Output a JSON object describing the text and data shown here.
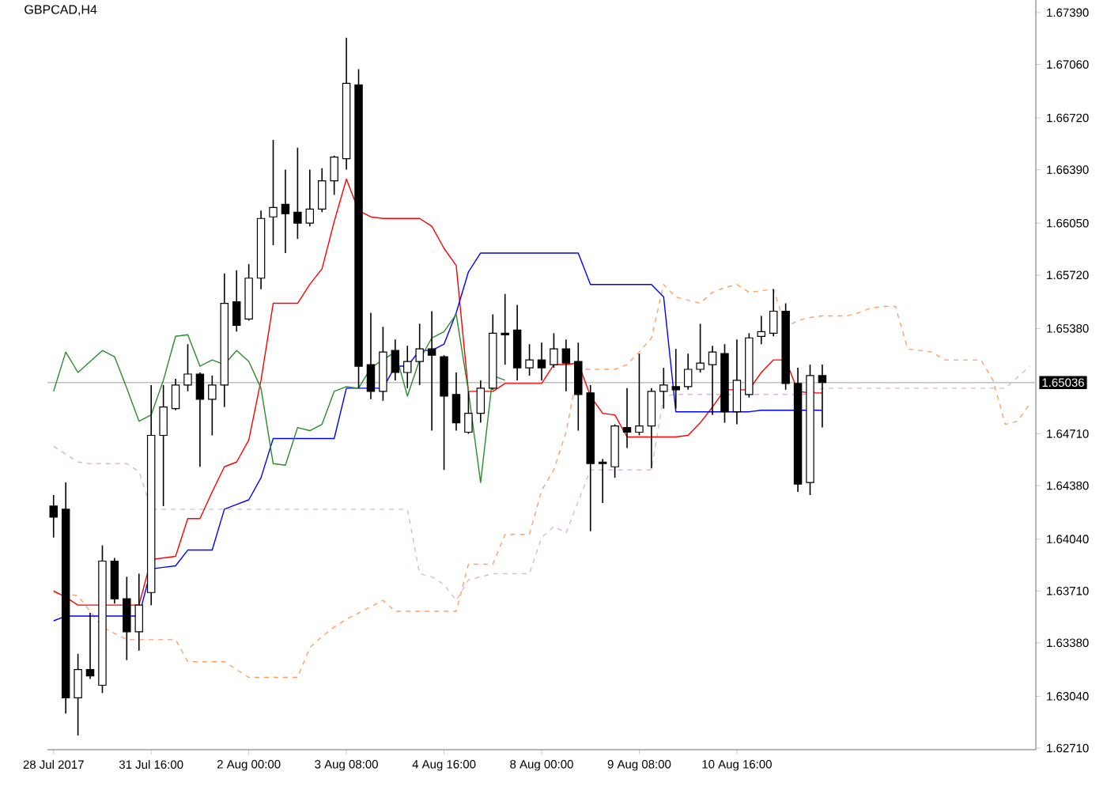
{
  "chart_data": {
    "type": "candlestick",
    "title": "GBPCAD,H4",
    "categories": [
      "28 Jul 2017",
      null,
      null,
      null,
      null,
      null,
      null,
      null,
      "31 Jul 16:00",
      null,
      null,
      null,
      null,
      null,
      null,
      null,
      "2 Aug 00:00",
      null,
      null,
      null,
      null,
      null,
      null,
      null,
      "3 Aug 08:00",
      null,
      null,
      null,
      null,
      null,
      null,
      null,
      "4 Aug 16:00",
      null,
      null,
      null,
      null,
      null,
      null,
      null,
      "8 Aug 00:00",
      null,
      null,
      null,
      null,
      null,
      null,
      null,
      "9 Aug 08:00",
      null,
      null,
      null,
      null,
      null,
      null,
      null,
      "10 Aug 16:00",
      null,
      null,
      null,
      null,
      null,
      null,
      null,
      null,
      null,
      null,
      null,
      null,
      null,
      null,
      null,
      null,
      null,
      null,
      null,
      null,
      null,
      null,
      null,
      null
    ],
    "ohlc": [
      [
        1.6425,
        1.6432,
        1.6405,
        1.6418
      ],
      [
        1.6423,
        1.644,
        1.6293,
        1.6303
      ],
      [
        1.6303,
        1.6331,
        1.6279,
        1.6321
      ],
      [
        1.6321,
        1.6357,
        1.6315,
        1.6317
      ],
      [
        1.6311,
        1.64,
        1.6306,
        1.639
      ],
      [
        1.639,
        1.6392,
        1.6363,
        1.6366
      ],
      [
        1.6366,
        1.638,
        1.6327,
        1.6345
      ],
      [
        1.6345,
        1.6382,
        1.6333,
        1.6362
      ],
      [
        1.637,
        1.6502,
        1.6362,
        1.647
      ],
      [
        1.647,
        1.6502,
        1.6425,
        1.6488
      ],
      [
        1.6487,
        1.6506,
        1.6486,
        1.6502
      ],
      [
        1.6502,
        1.6528,
        1.6498,
        1.6509
      ],
      [
        1.6509,
        1.651,
        1.645,
        1.6493
      ],
      [
        1.6493,
        1.6508,
        1.647,
        1.6502
      ],
      [
        1.6502,
        1.6573,
        1.6488,
        1.6554
      ],
      [
        1.6555,
        1.6575,
        1.6536,
        1.654
      ],
      [
        1.6544,
        1.6579,
        1.6543,
        1.657
      ],
      [
        1.657,
        1.6613,
        1.6563,
        1.6608
      ],
      [
        1.6609,
        1.6658,
        1.6591,
        1.6615
      ],
      [
        1.6617,
        1.6639,
        1.6586,
        1.6611
      ],
      [
        1.6612,
        1.6653,
        1.6595,
        1.6605
      ],
      [
        1.6605,
        1.6639,
        1.6603,
        1.6614
      ],
      [
        1.6614,
        1.664,
        1.6612,
        1.6632
      ],
      [
        1.6632,
        1.6648,
        1.6623,
        1.6647
      ],
      [
        1.6646,
        1.6723,
        1.6639,
        1.6694
      ],
      [
        1.6693,
        1.6703,
        1.65,
        1.6514
      ],
      [
        1.6515,
        1.6548,
        1.6493,
        1.6498
      ],
      [
        1.6498,
        1.6539,
        1.6492,
        1.6523
      ],
      [
        1.6524,
        1.6531,
        1.6505,
        1.651
      ],
      [
        1.651,
        1.6527,
        1.65,
        1.6517
      ],
      [
        1.6517,
        1.6541,
        1.6502,
        1.6525
      ],
      [
        1.6525,
        1.6549,
        1.6473,
        1.6521
      ],
      [
        1.652,
        1.6521,
        1.6448,
        1.6495
      ],
      [
        1.6496,
        1.651,
        1.6473,
        1.6478
      ],
      [
        1.6472,
        1.6498,
        1.6471,
        1.6484
      ],
      [
        1.6484,
        1.6505,
        1.6478,
        1.65
      ],
      [
        1.65,
        1.6547,
        1.6499,
        1.6535
      ],
      [
        1.6535,
        1.656,
        1.6515,
        1.6534
      ],
      [
        1.6537,
        1.6553,
        1.6505,
        1.6513
      ],
      [
        1.6513,
        1.6528,
        1.6508,
        1.6518
      ],
      [
        1.6518,
        1.6529,
        1.6505,
        1.6513
      ],
      [
        1.6515,
        1.6535,
        1.6513,
        1.6525
      ],
      [
        1.6525,
        1.6531,
        1.6498,
        1.6516
      ],
      [
        1.6517,
        1.6529,
        1.6473,
        1.6496
      ],
      [
        1.6497,
        1.6502,
        1.6409,
        1.6452
      ],
      [
        1.6453,
        1.6455,
        1.6427,
        1.6452
      ],
      [
        1.645,
        1.6477,
        1.6443,
        1.6476
      ],
      [
        1.6475,
        1.65,
        1.6462,
        1.6472
      ],
      [
        1.6472,
        1.6522,
        1.647,
        1.6476
      ],
      [
        1.6476,
        1.65,
        1.6449,
        1.6498
      ],
      [
        1.6498,
        1.6513,
        1.6487,
        1.6502
      ],
      [
        1.6501,
        1.6525,
        1.6487,
        1.6499
      ],
      [
        1.6501,
        1.6522,
        1.6499,
        1.6512
      ],
      [
        1.6512,
        1.6541,
        1.651,
        1.6516
      ],
      [
        1.6515,
        1.6527,
        1.6483,
        1.6523
      ],
      [
        1.6522,
        1.6528,
        1.6478,
        1.6485
      ],
      [
        1.6485,
        1.6531,
        1.6477,
        1.6505
      ],
      [
        1.6496,
        1.6535,
        1.6494,
        1.6532
      ],
      [
        1.6533,
        1.6546,
        1.6528,
        1.6536
      ],
      [
        1.6535,
        1.6563,
        1.6533,
        1.6549
      ],
      [
        1.6549,
        1.6554,
        1.6499,
        1.6503
      ],
      [
        1.6503,
        1.6513,
        1.6434,
        1.6439
      ],
      [
        1.644,
        1.6515,
        1.6432,
        1.6508
      ],
      [
        1.6508,
        1.6515,
        1.6475,
        1.65036
      ],
      null,
      null,
      null,
      null,
      null,
      null,
      null,
      null,
      null,
      null,
      null,
      null,
      null,
      null,
      null,
      null,
      null
    ],
    "series": [
      {
        "type": "line",
        "color": "#ffa060",
        "line_style": "dashed",
        "values": [
          1.637,
          1.6369,
          1.6368,
          1.6358,
          1.6348,
          1.6344,
          1.634,
          1.634,
          1.634,
          1.634,
          1.634,
          1.6326,
          1.6326,
          1.6326,
          1.6326,
          1.6321,
          1.6316,
          1.6316,
          1.6316,
          1.6316,
          1.6316,
          1.6335,
          1.6342,
          1.6348,
          1.6353,
          1.6357,
          1.6361,
          1.6365,
          1.6358,
          1.6358,
          1.6358,
          1.6358,
          1.6358,
          1.6358,
          1.6388,
          1.6388,
          1.6388,
          1.6407,
          1.6407,
          1.6407,
          1.6435,
          1.6448,
          1.6472,
          1.6512,
          1.6512,
          1.6512,
          1.6512,
          1.6515,
          1.6523,
          1.6532,
          1.6566,
          1.6558,
          1.6556,
          1.6554,
          1.6561,
          1.6564,
          1.6566,
          1.6561,
          1.6562,
          1.6563,
          1.6539,
          1.6543,
          1.6545,
          1.6546,
          1.6546,
          1.6546,
          1.6548,
          1.6551,
          1.6552,
          1.6552,
          1.6525,
          1.6524,
          1.6523,
          1.6518,
          1.6518,
          1.6518,
          1.6518,
          1.6505,
          1.6477,
          1.6479,
          1.649
        ]
      },
      {
        "type": "line",
        "color": "#d8b8d8",
        "line_style": "dashed",
        "values": [
          1.6463,
          1.6458,
          1.6453,
          1.6452,
          1.6452,
          1.6452,
          1.6452,
          1.6447,
          1.6423,
          1.6423,
          1.6423,
          1.6423,
          1.6423,
          1.6423,
          1.6423,
          1.6423,
          1.6423,
          1.6423,
          1.6423,
          1.6423,
          1.6423,
          1.6423,
          1.6423,
          1.6423,
          1.6423,
          1.6423,
          1.6423,
          1.6423,
          1.6423,
          1.6423,
          1.6382,
          1.638,
          1.6375,
          1.6365,
          1.6378,
          1.638,
          1.6382,
          1.6382,
          1.6382,
          1.6382,
          1.6405,
          1.6412,
          1.6408,
          1.6428,
          1.6448,
          1.6448,
          1.6448,
          1.6448,
          1.6448,
          1.6448,
          1.6495,
          1.6496,
          1.6496,
          1.6496,
          1.6496,
          1.6496,
          1.6496,
          1.6496,
          1.6496,
          1.6496,
          1.6496,
          1.6496,
          1.6496,
          1.65,
          1.65,
          1.65,
          1.65,
          1.65,
          1.65,
          1.65,
          1.65,
          1.65,
          1.65,
          1.65,
          1.65,
          1.65,
          1.65,
          1.65,
          1.65,
          1.6507,
          1.6514
        ]
      },
      {
        "type": "line",
        "color": "#ff0000",
        "line_style": "solid",
        "values": [
          1.6371,
          1.6367,
          1.6362,
          1.6362,
          1.6362,
          1.6362,
          1.6362,
          1.6362,
          1.6391,
          1.6392,
          1.6393,
          1.6417,
          1.6417,
          1.6434,
          1.645,
          1.6453,
          1.6467,
          1.6505,
          1.6554,
          1.6554,
          1.6554,
          1.6566,
          1.6576,
          1.6606,
          1.6633,
          1.6613,
          1.6609,
          1.6608,
          1.6608,
          1.6608,
          1.6608,
          1.6603,
          1.6589,
          1.6578,
          1.6498,
          1.6498,
          1.6498,
          1.6503,
          1.6503,
          1.6503,
          1.6503,
          1.6515,
          1.6515,
          1.6516,
          1.6495,
          1.6484,
          1.6483,
          1.6469,
          1.6469,
          1.6469,
          1.6469,
          1.6469,
          1.647,
          1.6478,
          1.6488,
          1.6499,
          1.6499,
          1.6499,
          1.651,
          1.6518,
          1.6518,
          1.6498,
          1.6497,
          1.6497,
          null,
          null,
          null,
          null,
          null,
          null,
          null,
          null,
          null,
          null,
          null,
          null,
          null,
          null,
          null,
          null,
          null
        ]
      },
      {
        "type": "line",
        "color": "#0000ff",
        "line_style": "solid",
        "values": [
          1.6352,
          1.6355,
          1.6355,
          1.6355,
          1.6355,
          1.6355,
          1.6355,
          1.6355,
          1.6385,
          1.6386,
          1.6387,
          1.6397,
          1.6397,
          1.6397,
          1.6423,
          1.6426,
          1.6429,
          1.6443,
          1.6468,
          1.6468,
          1.6468,
          1.6468,
          1.6468,
          1.6468,
          1.65,
          1.65,
          1.65,
          1.65,
          1.6514,
          1.6514,
          1.6524,
          1.6524,
          1.6528,
          1.6548,
          1.6574,
          1.6586,
          1.6586,
          1.6586,
          1.6586,
          1.6586,
          1.6586,
          1.6586,
          1.6586,
          1.6586,
          1.6566,
          1.6566,
          1.6566,
          1.6566,
          1.6566,
          1.6566,
          1.6558,
          1.6485,
          1.6485,
          1.6485,
          1.6485,
          1.6485,
          1.6485,
          1.6485,
          1.6486,
          1.6486,
          1.6486,
          1.6486,
          1.6486,
          1.6486,
          null,
          null,
          null,
          null,
          null,
          null,
          null,
          null,
          null,
          null,
          null,
          null,
          null,
          null,
          null,
          null,
          null
        ]
      },
      {
        "type": "line",
        "color": "#2a8c2a",
        "line_style": "solid",
        "values": [
          1.6498,
          1.6523,
          1.651,
          1.6517,
          1.6524,
          1.652,
          1.65,
          1.6479,
          1.6483,
          1.6505,
          1.6533,
          1.6534,
          1.6514,
          1.6518,
          1.6515,
          1.6524,
          1.6517,
          1.65,
          1.6452,
          1.6451,
          1.6475,
          1.6473,
          1.6477,
          1.6498,
          1.6501,
          1.65,
          1.6513,
          1.6518,
          1.6523,
          1.6495,
          1.6518,
          1.6532,
          1.6536,
          1.6547,
          1.6498,
          1.644,
          1.6508,
          1.6505,
          null,
          null,
          null,
          null,
          null,
          null,
          null,
          null,
          null,
          null,
          null,
          null,
          null,
          null,
          null,
          null,
          null,
          null,
          null,
          null,
          null,
          null,
          null,
          null,
          null,
          null,
          null,
          null,
          null,
          null,
          null,
          null,
          null,
          null,
          null,
          null,
          null,
          null,
          null,
          null,
          null,
          null,
          null
        ]
      }
    ],
    "ylim": [
      1.627,
      1.6747
    ],
    "yticks": [
      {
        "value": 1.6739,
        "label": "1.67390"
      },
      {
        "value": 1.6706,
        "label": "1.67060"
      },
      {
        "value": 1.6672,
        "label": "1.66720"
      },
      {
        "value": 1.6639,
        "label": "1.66390"
      },
      {
        "value": 1.6605,
        "label": "1.66050"
      },
      {
        "value": 1.6572,
        "label": "1.65720"
      },
      {
        "value": 1.6538,
        "label": "1.65380"
      },
      {
        "value": 1.6471,
        "label": "1.64710"
      },
      {
        "value": 1.6438,
        "label": "1.64380"
      },
      {
        "value": 1.6404,
        "label": "1.64040"
      },
      {
        "value": 1.6371,
        "label": "1.63710"
      },
      {
        "value": 1.6338,
        "label": "1.63380"
      },
      {
        "value": 1.6304,
        "label": "1.63040"
      },
      {
        "value": 1.6271,
        "label": "1.62710"
      }
    ],
    "ref_lines": [
      {
        "axis": "y",
        "value": 1.65036,
        "label": "1.65036",
        "color": "#c0c0c0"
      }
    ]
  }
}
